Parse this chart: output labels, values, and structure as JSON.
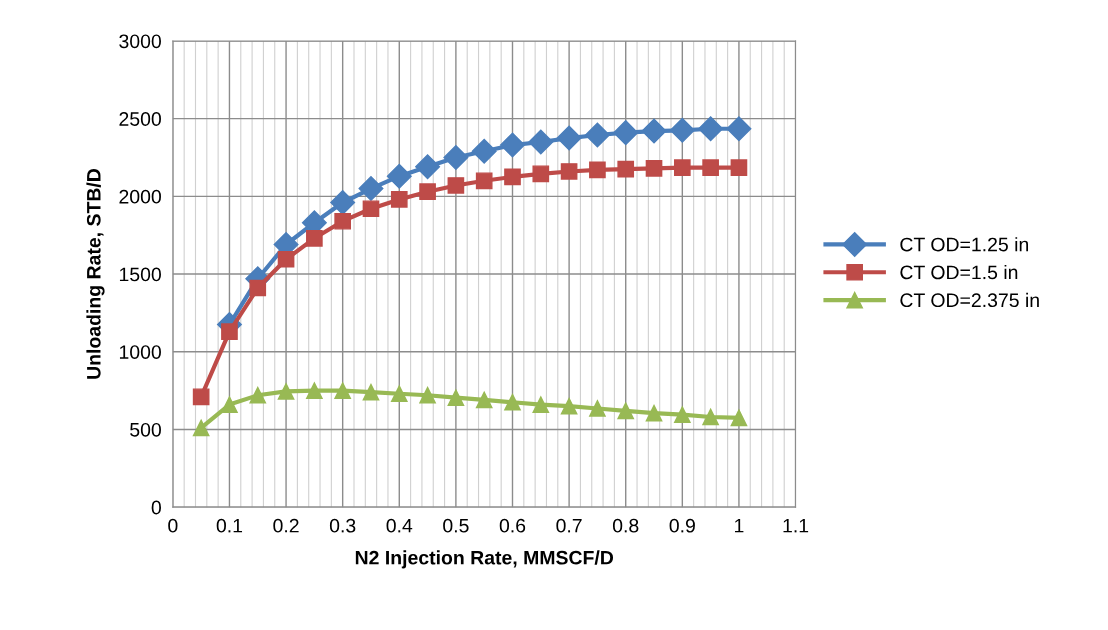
{
  "chart_data": {
    "type": "line",
    "xlabel": "N2 Injection Rate, MMSCF/D",
    "ylabel": "Unloading Rate, STB/D",
    "x": [
      0.05,
      0.1,
      0.15,
      0.2,
      0.25,
      0.3,
      0.35,
      0.4,
      0.45,
      0.5,
      0.55,
      0.6,
      0.65,
      0.7,
      0.75,
      0.8,
      0.85,
      0.9,
      0.95,
      1.0
    ],
    "series": [
      {
        "name": "CT OD=1.25 in",
        "color": "#4a7ebb",
        "marker": "diamond",
        "values": [
          null,
          1175,
          1470,
          1690,
          1830,
          1960,
          2050,
          2130,
          2190,
          2250,
          2290,
          2330,
          2350,
          2375,
          2395,
          2410,
          2420,
          2425,
          2435,
          2435
        ]
      },
      {
        "name": "CT OD=1.5 in",
        "color": "#be4b48",
        "marker": "square",
        "values": [
          710,
          1130,
          1410,
          1595,
          1730,
          1840,
          1920,
          1980,
          2030,
          2070,
          2100,
          2125,
          2145,
          2160,
          2170,
          2175,
          2180,
          2185,
          2185,
          2185
        ]
      },
      {
        "name": "CT OD=2.375 in",
        "color": "#98b954",
        "marker": "triangle",
        "values": [
          510,
          660,
          720,
          745,
          750,
          750,
          740,
          730,
          720,
          705,
          690,
          675,
          660,
          650,
          635,
          620,
          605,
          595,
          580,
          575
        ]
      }
    ],
    "xlim": [
      0,
      1.1
    ],
    "xticks": [
      0,
      0.1,
      0.2,
      0.3,
      0.4,
      0.5,
      0.6,
      0.7,
      0.8,
      0.9,
      1,
      1.1
    ],
    "ylim": [
      0,
      3000
    ],
    "yticks": [
      0,
      500,
      1000,
      1500,
      2000,
      2500,
      3000
    ],
    "grid": true,
    "legend": "right",
    "line_style": "solid"
  }
}
